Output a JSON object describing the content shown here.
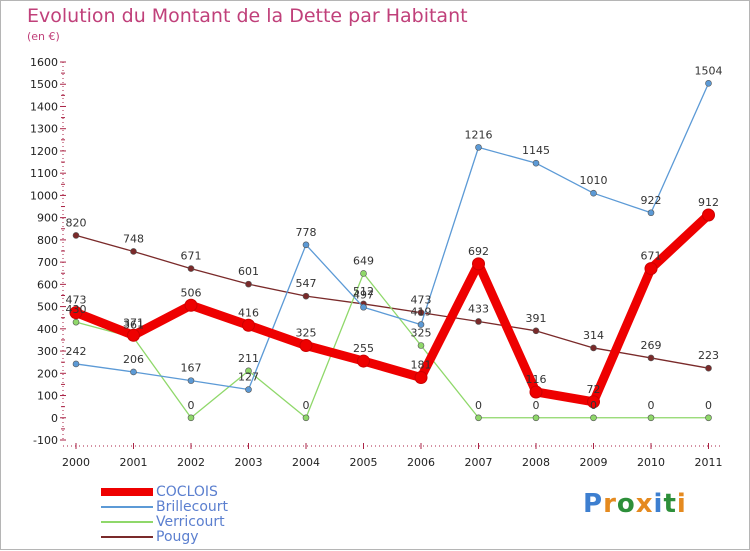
{
  "title": "Evolution du Montant de la Dette par Habitant",
  "subtitle": "(en €)",
  "logo": {
    "text": "Proxiti",
    "letter_colors": [
      "#3d7fd0",
      "#e58a1f",
      "#2d8f3a",
      "#e58a1f",
      "#3d7fd0",
      "#2d8f3a",
      "#e58a1f"
    ]
  },
  "chart_data": {
    "type": "line",
    "title": "Evolution du Montant de la Dette par Habitant",
    "ylabel": "(en €)",
    "xlabel": "",
    "categories": [
      "2000",
      "2001",
      "2002",
      "2003",
      "2004",
      "2005",
      "2006",
      "2007",
      "2008",
      "2009",
      "2010",
      "2011"
    ],
    "ylim": [
      -100,
      1600
    ],
    "yticks": [
      -100,
      0,
      100,
      200,
      300,
      400,
      500,
      600,
      700,
      800,
      900,
      1000,
      1100,
      1200,
      1300,
      1400,
      1500,
      1600
    ],
    "grid": false,
    "legend_position": "bottom-left",
    "series": [
      {
        "name": "Pougy",
        "color": "#7a2a2a",
        "values": [
          820,
          748,
          671,
          601,
          547,
          512,
          473,
          433,
          391,
          314,
          269,
          223
        ],
        "labels": [
          "820",
          "748",
          "671",
          "601",
          "547",
          "512",
          "473",
          "433",
          "391",
          "314",
          "269",
          "223"
        ]
      },
      {
        "name": "Verricourt",
        "color": "#8fd86a",
        "values": [
          430,
          361,
          0,
          211,
          0,
          649,
          325,
          0,
          0,
          0,
          0,
          0
        ],
        "labels": [
          "430",
          "361",
          "0",
          "211",
          "0",
          "649",
          "325",
          "0",
          "0",
          "0",
          "0",
          "0"
        ]
      },
      {
        "name": "Brillecourt",
        "color": "#5c9ad6",
        "values": [
          242,
          206,
          167,
          127,
          778,
          497,
          419,
          1216,
          1145,
          1010,
          922,
          1504
        ],
        "labels": [
          "242",
          "206",
          "167",
          "127",
          "778",
          "497",
          "419",
          "1216",
          "1145",
          "1010",
          "922",
          "1504"
        ]
      },
      {
        "name": "COCLOIS",
        "color": "#ee0000",
        "values": [
          473,
          371,
          506,
          416,
          325,
          255,
          181,
          692,
          116,
          72,
          671,
          912
        ],
        "labels": [
          "473",
          "371",
          "506",
          "416",
          "325",
          "255",
          "181",
          "692",
          "116",
          "72",
          "671",
          "912"
        ]
      }
    ],
    "legend_order": [
      "COCLOIS",
      "Brillecourt",
      "Verricourt",
      "Pougy"
    ]
  }
}
